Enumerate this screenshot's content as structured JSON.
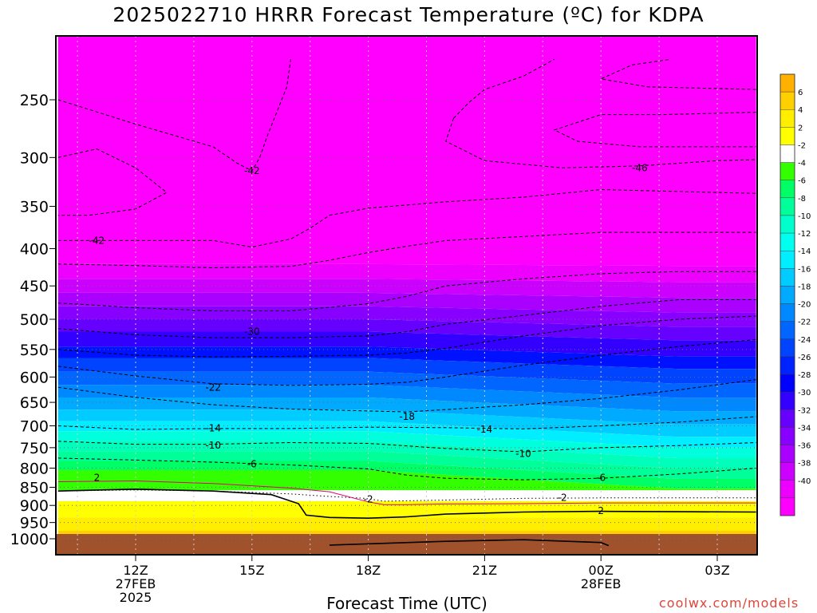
{
  "title": "2025022710 HRRR Forecast Temperature (ºC) for KDPA",
  "credit": "coolwx.com/models",
  "chart_data": {
    "type": "contour",
    "title": "2025022710 HRRR Forecast Temperature (ºC) for KDPA",
    "xlabel": "Forecast Time (UTC)",
    "ylabel": "",
    "x_ticks": [
      {
        "hour": 12,
        "label": "12Z",
        "sub1": "27FEB",
        "sub2": "2025"
      },
      {
        "hour": 15,
        "label": "15Z",
        "sub1": "",
        "sub2": ""
      },
      {
        "hour": 18,
        "label": "18Z",
        "sub1": "",
        "sub2": ""
      },
      {
        "hour": 21,
        "label": "21Z",
        "sub1": "",
        "sub2": ""
      },
      {
        "hour": 24,
        "label": "00Z",
        "sub1": "28FEB",
        "sub2": ""
      },
      {
        "hour": 27,
        "label": "03Z",
        "sub1": "",
        "sub2": ""
      }
    ],
    "x_range": [
      10,
      28
    ],
    "y_ticks": [
      250,
      300,
      350,
      400,
      450,
      500,
      550,
      600,
      650,
      700,
      750,
      800,
      850,
      900,
      950,
      1000
    ],
    "y_range_hpa": [
      1030,
      200
    ],
    "y_scale": "log",
    "grid": true,
    "colorbar": {
      "placement": "right",
      "levels": [
        -40,
        -38,
        -36,
        -34,
        -32,
        -30,
        -28,
        -26,
        -24,
        -22,
        -20,
        -18,
        -16,
        -14,
        -12,
        -10,
        -8,
        -6,
        -4,
        -2,
        2,
        4,
        6
      ],
      "colors": [
        "#ff00ff",
        "#ee00ff",
        "#cc00ff",
        "#aa00ff",
        "#8800ff",
        "#6600ff",
        "#3300ff",
        "#0000ff",
        "#0022ff",
        "#0044ff",
        "#0066ff",
        "#0088ff",
        "#00aaff",
        "#00ccff",
        "#00eeff",
        "#00ffee",
        "#00ffcc",
        "#00ff99",
        "#00ff66",
        "#33ff00",
        "#ffffff",
        "#ffff00",
        "#ffee00",
        "#ffd000",
        "#ffb000"
      ]
    },
    "contour_labels": [
      {
        "hour": 15,
        "hpa": 313,
        "text": "-42"
      },
      {
        "hour": 11,
        "hpa": 390,
        "text": "-42"
      },
      {
        "hour": 25,
        "hpa": 310,
        "text": "-46"
      },
      {
        "hour": 15,
        "hpa": 520,
        "text": "-30"
      },
      {
        "hour": 14,
        "hpa": 620,
        "text": "-22"
      },
      {
        "hour": 19,
        "hpa": 680,
        "text": "-18"
      },
      {
        "hour": 14,
        "hpa": 705,
        "text": "-14"
      },
      {
        "hour": 21,
        "hpa": 708,
        "text": "-14"
      },
      {
        "hour": 14,
        "hpa": 745,
        "text": "-10"
      },
      {
        "hour": 22,
        "hpa": 765,
        "text": "-10"
      },
      {
        "hour": 15,
        "hpa": 790,
        "text": "-6"
      },
      {
        "hour": 24,
        "hpa": 825,
        "text": "-6"
      },
      {
        "hour": 11,
        "hpa": 825,
        "text": "2"
      },
      {
        "hour": 18,
        "hpa": 883,
        "text": "-2"
      },
      {
        "hour": 23,
        "hpa": 878,
        "text": "-2"
      },
      {
        "hour": 24,
        "hpa": 915,
        "text": "2"
      }
    ],
    "contours": [
      {
        "name": "-42",
        "style": "dashed",
        "points": [
          [
            10,
            250
          ],
          [
            12,
            270
          ],
          [
            14,
            290
          ],
          [
            14.6,
            305
          ],
          [
            15,
            313
          ],
          [
            15.2,
            300
          ],
          [
            15.4,
            280
          ],
          [
            15.9,
            240
          ],
          [
            16,
            220
          ]
        ]
      },
      {
        "name": "-42",
        "style": "dashed",
        "points": [
          [
            10,
            300
          ],
          [
            11,
            292
          ],
          [
            12,
            310
          ],
          [
            12.8,
            335
          ],
          [
            12,
            353
          ],
          [
            10.8,
            360
          ],
          [
            10,
            360
          ]
        ]
      },
      {
        "name": "-42",
        "style": "dashed",
        "points": [
          [
            10,
            390
          ],
          [
            12,
            390
          ],
          [
            14,
            390
          ],
          [
            15,
            398
          ],
          [
            16,
            388
          ],
          [
            16.5,
            375
          ],
          [
            17,
            360
          ],
          [
            18,
            352
          ],
          [
            20,
            345
          ],
          [
            22,
            340
          ],
          [
            24,
            332
          ],
          [
            27,
            335
          ],
          [
            28,
            336
          ]
        ]
      },
      {
        "name": "-46",
        "style": "dashed",
        "points": [
          [
            20.2,
            265
          ],
          [
            20.6,
            252
          ],
          [
            21,
            242
          ],
          [
            22,
            232
          ],
          [
            22.8,
            220
          ]
        ]
      },
      {
        "name": "-46",
        "style": "dashed",
        "points": [
          [
            20.2,
            265
          ],
          [
            20,
            285
          ],
          [
            21,
            303
          ],
          [
            23,
            310
          ],
          [
            25,
            308
          ],
          [
            27,
            303
          ],
          [
            28,
            302
          ]
        ]
      },
      {
        "name": "-46",
        "style": "dashed",
        "points": [
          [
            28,
            242
          ],
          [
            25.2,
            240
          ],
          [
            24,
            234
          ],
          [
            24.8,
            224
          ],
          [
            25.8,
            220
          ]
        ]
      },
      {
        "name": "-46",
        "style": "dashed",
        "points": [
          [
            28,
            260
          ],
          [
            25.6,
            262
          ],
          [
            24,
            262
          ],
          [
            22.8,
            275
          ],
          [
            23.4,
            285
          ],
          [
            25,
            290
          ],
          [
            28,
            290
          ]
        ]
      },
      {
        "name": "-42",
        "style": "dashed",
        "points": [
          [
            10,
            420
          ],
          [
            12,
            422
          ],
          [
            14,
            425
          ],
          [
            16,
            423
          ],
          [
            17,
            415
          ],
          [
            18,
            405
          ],
          [
            19,
            397
          ],
          [
            20,
            390
          ],
          [
            22,
            385
          ],
          [
            24,
            380
          ],
          [
            26,
            380
          ],
          [
            28,
            380
          ]
        ]
      },
      {
        "name": "-34",
        "style": "dashed",
        "points": [
          [
            10,
            475
          ],
          [
            12,
            482
          ],
          [
            14,
            487
          ],
          [
            16,
            487
          ],
          [
            18,
            476
          ],
          [
            19,
            465
          ],
          [
            20,
            450
          ],
          [
            22,
            440
          ],
          [
            24,
            433
          ],
          [
            26,
            430
          ],
          [
            28,
            430
          ]
        ]
      },
      {
        "name": "-30",
        "style": "dashed",
        "points": [
          [
            10,
            515
          ],
          [
            12,
            525
          ],
          [
            14,
            530
          ],
          [
            16,
            530
          ],
          [
            18,
            527
          ],
          [
            19,
            520
          ],
          [
            20,
            508
          ],
          [
            22,
            494
          ],
          [
            24,
            480
          ],
          [
            26,
            470
          ],
          [
            28,
            470
          ]
        ]
      },
      {
        "name": "-26",
        "style": "dashed",
        "points": [
          [
            10,
            550
          ],
          [
            12,
            560
          ],
          [
            14,
            563
          ],
          [
            16,
            562
          ],
          [
            18,
            560
          ],
          [
            19,
            556
          ],
          [
            20,
            548
          ],
          [
            22,
            527
          ],
          [
            24,
            510
          ],
          [
            26,
            500
          ],
          [
            28,
            495
          ]
        ]
      },
      {
        "name": "-22",
        "style": "dashed",
        "points": [
          [
            10,
            580
          ],
          [
            12,
            598
          ],
          [
            14,
            613
          ],
          [
            16,
            616
          ],
          [
            18,
            614
          ],
          [
            19,
            610
          ],
          [
            20,
            600
          ],
          [
            22,
            578
          ],
          [
            24,
            560
          ],
          [
            26,
            545
          ],
          [
            28,
            533
          ]
        ]
      },
      {
        "name": "-18",
        "style": "dashed",
        "points": [
          [
            10,
            620
          ],
          [
            12,
            640
          ],
          [
            14,
            655
          ],
          [
            16,
            664
          ],
          [
            18,
            668
          ],
          [
            19,
            670
          ],
          [
            20,
            665
          ],
          [
            22,
            655
          ],
          [
            24,
            642
          ],
          [
            26,
            625
          ],
          [
            28,
            605
          ]
        ]
      },
      {
        "name": "-14",
        "style": "dashed",
        "points": [
          [
            10,
            700
          ],
          [
            12,
            708
          ],
          [
            14,
            706
          ],
          [
            16,
            706
          ],
          [
            18,
            703
          ],
          [
            20,
            704
          ],
          [
            22,
            707
          ],
          [
            24,
            700
          ],
          [
            26,
            692
          ],
          [
            28,
            680
          ]
        ]
      },
      {
        "name": "-10",
        "style": "dashed",
        "points": [
          [
            10,
            735
          ],
          [
            12,
            742
          ],
          [
            14,
            742
          ],
          [
            16,
            738
          ],
          [
            18,
            740
          ],
          [
            20,
            752
          ],
          [
            22,
            760
          ],
          [
            24,
            750
          ],
          [
            26,
            745
          ],
          [
            28,
            738
          ]
        ]
      },
      {
        "name": "-6",
        "style": "dashed",
        "points": [
          [
            10,
            775
          ],
          [
            12,
            780
          ],
          [
            14,
            785
          ],
          [
            16,
            792
          ],
          [
            18,
            802
          ],
          [
            19,
            818
          ],
          [
            20,
            826
          ],
          [
            22,
            830
          ],
          [
            24,
            826
          ],
          [
            26,
            815
          ],
          [
            28,
            800
          ]
        ]
      },
      {
        "name": "-2",
        "style": "dotted",
        "points": [
          [
            10,
            860
          ],
          [
            12,
            857
          ],
          [
            14,
            860
          ],
          [
            16,
            868
          ],
          [
            17,
            875
          ],
          [
            17.9,
            880
          ],
          [
            18.4,
            888
          ],
          [
            20,
            885
          ],
          [
            22,
            880
          ],
          [
            24,
            879
          ],
          [
            26,
            879
          ],
          [
            28,
            879
          ]
        ]
      },
      {
        "name": "0",
        "style": "magenta",
        "points": [
          [
            10,
            835
          ],
          [
            12,
            833
          ],
          [
            14,
            840
          ],
          [
            16,
            852
          ],
          [
            17,
            862
          ],
          [
            18,
            890
          ],
          [
            18.4,
            898
          ],
          [
            19,
            898
          ],
          [
            20,
            896
          ],
          [
            22,
            895
          ],
          [
            24,
            893
          ],
          [
            26,
            893
          ],
          [
            28,
            893
          ]
        ]
      },
      {
        "name": "2",
        "style": "solid",
        "points": [
          [
            10,
            860
          ],
          [
            12,
            855
          ],
          [
            14,
            860
          ],
          [
            15.5,
            870
          ],
          [
            16.2,
            895
          ],
          [
            16.4,
            928
          ],
          [
            17,
            935
          ],
          [
            18,
            937
          ],
          [
            19,
            933
          ],
          [
            20,
            925
          ],
          [
            22,
            919
          ],
          [
            24,
            917
          ],
          [
            26,
            918
          ],
          [
            28,
            919
          ]
        ]
      },
      {
        "name": "2",
        "style": "solid",
        "points": [
          [
            17,
            1020
          ],
          [
            20,
            1008
          ],
          [
            22,
            1003
          ],
          [
            24,
            1012
          ],
          [
            24.2,
            1022
          ]
        ]
      }
    ]
  }
}
